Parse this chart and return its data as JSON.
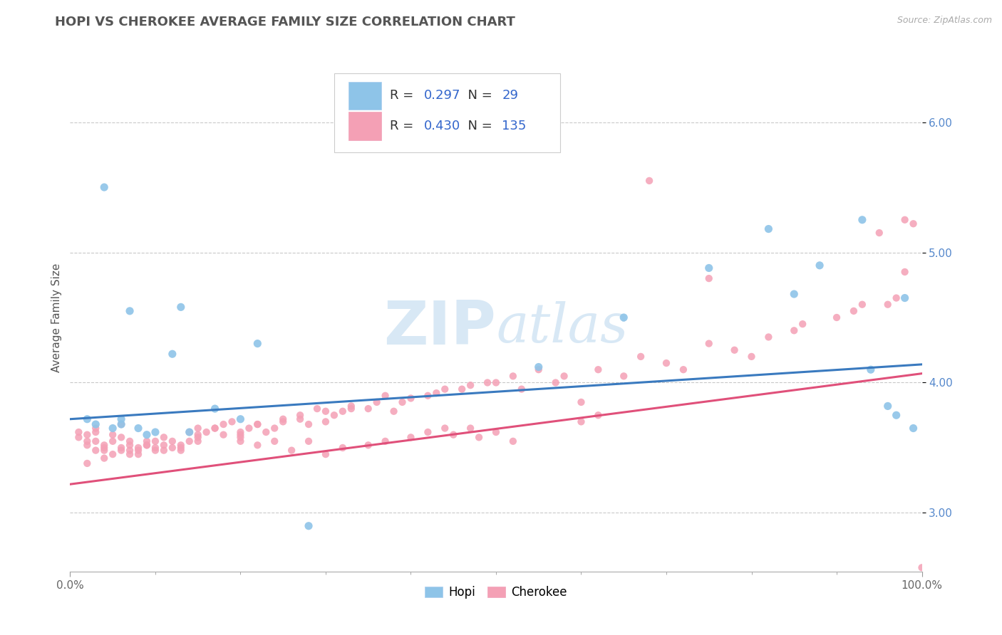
{
  "title": "HOPI VS CHEROKEE AVERAGE FAMILY SIZE CORRELATION CHART",
  "source_text": "Source: ZipAtlas.com",
  "ylabel": "Average Family Size",
  "xlim": [
    0,
    1
  ],
  "ylim": [
    2.55,
    6.45
  ],
  "yticks": [
    3.0,
    4.0,
    5.0,
    6.0
  ],
  "xticks": [
    0.0,
    1.0
  ],
  "xticklabels": [
    "0.0%",
    "100.0%"
  ],
  "legend_r_hopi": "0.297",
  "legend_n_hopi": "29",
  "legend_r_cherokee": "0.430",
  "legend_n_cherokee": "135",
  "hopi_color": "#8ec4e8",
  "cherokee_color": "#f4a0b5",
  "hopi_line_color": "#3a7abf",
  "cherokee_line_color": "#e0507a",
  "ytick_color": "#5588cc",
  "background_color": "#ffffff",
  "grid_color": "#bbbbbb",
  "watermark_color": "#d8e8f5",
  "title_fontsize": 13,
  "label_fontsize": 11,
  "tick_fontsize": 11,
  "hopi_line_intercept": 3.72,
  "hopi_line_slope": 0.42,
  "cherokee_line_intercept": 3.22,
  "cherokee_line_slope": 0.85,
  "hopi_x": [
    0.02,
    0.03,
    0.04,
    0.05,
    0.06,
    0.06,
    0.07,
    0.08,
    0.09,
    0.1,
    0.12,
    0.13,
    0.14,
    0.17,
    0.2,
    0.22,
    0.28,
    0.55,
    0.65,
    0.75,
    0.82,
    0.85,
    0.88,
    0.93,
    0.94,
    0.96,
    0.97,
    0.98,
    0.99
  ],
  "hopi_y": [
    3.72,
    3.68,
    5.5,
    3.65,
    3.72,
    3.68,
    4.55,
    3.65,
    3.6,
    3.62,
    4.22,
    4.58,
    3.62,
    3.8,
    3.72,
    4.3,
    2.9,
    4.12,
    4.5,
    4.88,
    5.18,
    4.68,
    4.9,
    5.25,
    4.1,
    3.82,
    3.75,
    4.65,
    3.65
  ],
  "cherokee_x": [
    0.01,
    0.01,
    0.02,
    0.02,
    0.02,
    0.03,
    0.03,
    0.03,
    0.03,
    0.04,
    0.04,
    0.04,
    0.05,
    0.05,
    0.05,
    0.06,
    0.06,
    0.06,
    0.07,
    0.07,
    0.07,
    0.08,
    0.08,
    0.08,
    0.09,
    0.09,
    0.1,
    0.1,
    0.1,
    0.11,
    0.11,
    0.12,
    0.12,
    0.13,
    0.13,
    0.14,
    0.14,
    0.15,
    0.15,
    0.16,
    0.17,
    0.18,
    0.19,
    0.2,
    0.2,
    0.21,
    0.22,
    0.23,
    0.24,
    0.25,
    0.27,
    0.28,
    0.29,
    0.3,
    0.31,
    0.32,
    0.33,
    0.35,
    0.36,
    0.37,
    0.38,
    0.39,
    0.4,
    0.42,
    0.43,
    0.44,
    0.46,
    0.47,
    0.49,
    0.5,
    0.52,
    0.53,
    0.55,
    0.57,
    0.58,
    0.6,
    0.62,
    0.65,
    0.67,
    0.68,
    0.7,
    0.72,
    0.75,
    0.78,
    0.8,
    0.82,
    0.85,
    0.86,
    0.9,
    0.92,
    0.93,
    0.95,
    0.96,
    0.97,
    0.98,
    0.99,
    1.0,
    0.75,
    0.98,
    0.45,
    0.47,
    0.48,
    0.5,
    0.52,
    0.6,
    0.62,
    0.35,
    0.37,
    0.4,
    0.42,
    0.44,
    0.3,
    0.32,
    0.28,
    0.26,
    0.22,
    0.24,
    0.2,
    0.18,
    0.15,
    0.13,
    0.11,
    0.09,
    0.07,
    0.06,
    0.04,
    0.02,
    0.15,
    0.17,
    0.2,
    0.22,
    0.25,
    0.27,
    0.3,
    0.33
  ],
  "cherokee_y": [
    3.58,
    3.62,
    3.55,
    3.6,
    3.52,
    3.48,
    3.55,
    3.62,
    3.65,
    3.5,
    3.48,
    3.52,
    3.45,
    3.55,
    3.6,
    3.5,
    3.58,
    3.68,
    3.48,
    3.55,
    3.52,
    3.48,
    3.5,
    3.45,
    3.52,
    3.55,
    3.48,
    3.5,
    3.55,
    3.52,
    3.58,
    3.5,
    3.55,
    3.48,
    3.52,
    3.55,
    3.62,
    3.65,
    3.58,
    3.62,
    3.65,
    3.68,
    3.7,
    3.6,
    3.55,
    3.65,
    3.68,
    3.62,
    3.65,
    3.7,
    3.72,
    3.68,
    3.8,
    3.7,
    3.75,
    3.78,
    3.82,
    3.8,
    3.85,
    3.9,
    3.78,
    3.85,
    3.88,
    3.9,
    3.92,
    3.95,
    3.95,
    3.98,
    4.0,
    4.0,
    4.05,
    3.95,
    4.1,
    4.0,
    4.05,
    3.85,
    4.1,
    4.05,
    4.2,
    5.55,
    4.15,
    4.1,
    4.3,
    4.25,
    4.2,
    4.35,
    4.4,
    4.45,
    4.5,
    4.55,
    4.6,
    5.15,
    4.6,
    4.65,
    5.25,
    5.22,
    2.58,
    4.8,
    4.85,
    3.6,
    3.65,
    3.58,
    3.62,
    3.55,
    3.7,
    3.75,
    3.52,
    3.55,
    3.58,
    3.62,
    3.65,
    3.45,
    3.5,
    3.55,
    3.48,
    3.52,
    3.55,
    3.58,
    3.6,
    3.55,
    3.5,
    3.48,
    3.52,
    3.45,
    3.48,
    3.42,
    3.38,
    3.6,
    3.65,
    3.62,
    3.68,
    3.72,
    3.75,
    3.78,
    3.8
  ]
}
